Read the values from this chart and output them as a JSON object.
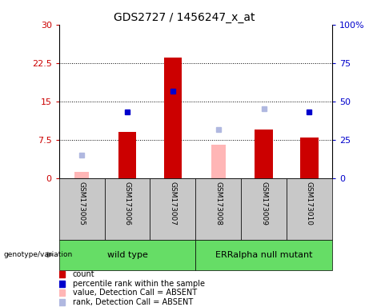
{
  "title": "GDS2727 / 1456247_x_at",
  "samples": [
    "GSM173005",
    "GSM173006",
    "GSM173007",
    "GSM173008",
    "GSM173009",
    "GSM173010"
  ],
  "count_values": [
    null,
    9.0,
    23.5,
    null,
    9.5,
    8.0
  ],
  "percentile_rank_values": [
    null,
    13.0,
    17.0,
    null,
    null,
    13.0
  ],
  "absent_value": [
    1.2,
    null,
    null,
    6.5,
    9.0,
    null
  ],
  "absent_rank": [
    4.5,
    null,
    null,
    9.5,
    13.5,
    null
  ],
  "ylim_left": [
    0,
    30
  ],
  "ylim_right": [
    0,
    100
  ],
  "yticks_left": [
    0,
    7.5,
    15,
    22.5,
    30
  ],
  "yticks_right": [
    0,
    25,
    50,
    75,
    100
  ],
  "ytick_labels_left": [
    "0",
    "7.5",
    "15",
    "22.5",
    "30"
  ],
  "ytick_labels_right": [
    "0",
    "25",
    "50",
    "75",
    "100%"
  ],
  "count_color": "#cc0000",
  "percentile_color": "#0000cc",
  "absent_val_color": "#ffb6b6",
  "absent_rank_color": "#b0b8e0",
  "bar_width": 0.4,
  "grid_color": "black",
  "sample_box_color": "#c8c8c8",
  "green_color": "#66dd66"
}
